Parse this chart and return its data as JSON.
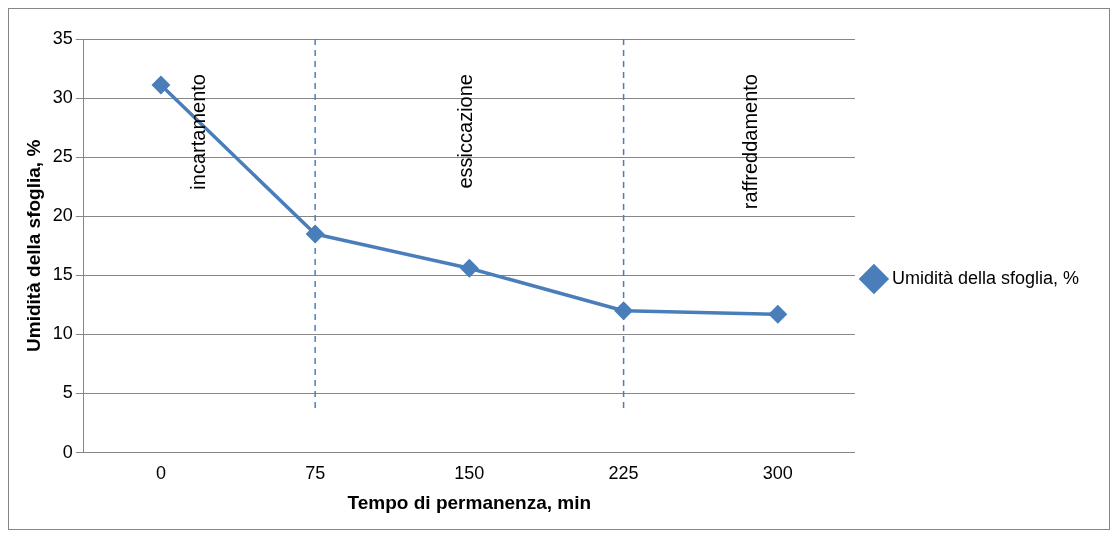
{
  "chart_data": {
    "type": "line",
    "xlabel": "Tempo di permanenza, min",
    "ylabel": "Umidità della sfoglia, %",
    "categories": [
      "0",
      "75",
      "150",
      "225",
      "300"
    ],
    "series": [
      {
        "name": "Umidità della sfoglia, %",
        "color": "#4a7ebb",
        "values": [
          31.1,
          18.5,
          15.6,
          12.0,
          11.7
        ]
      }
    ],
    "ylim": [
      0,
      35
    ],
    "yticks": [
      0,
      5,
      10,
      15,
      20,
      25,
      30,
      35
    ],
    "grid": "y",
    "legend": "right",
    "marker": "diamond",
    "line_style": "solid",
    "ref_lines": [
      {
        "axis": "x",
        "value": "75",
        "color": "#4a7ebb",
        "line_style": "dashed"
      },
      {
        "axis": "x",
        "value": "225",
        "color": "#4a7ebb",
        "line_style": "dashed"
      }
    ],
    "annotations": [
      "incartamento",
      "essiccazione",
      "raffreddamento"
    ]
  }
}
